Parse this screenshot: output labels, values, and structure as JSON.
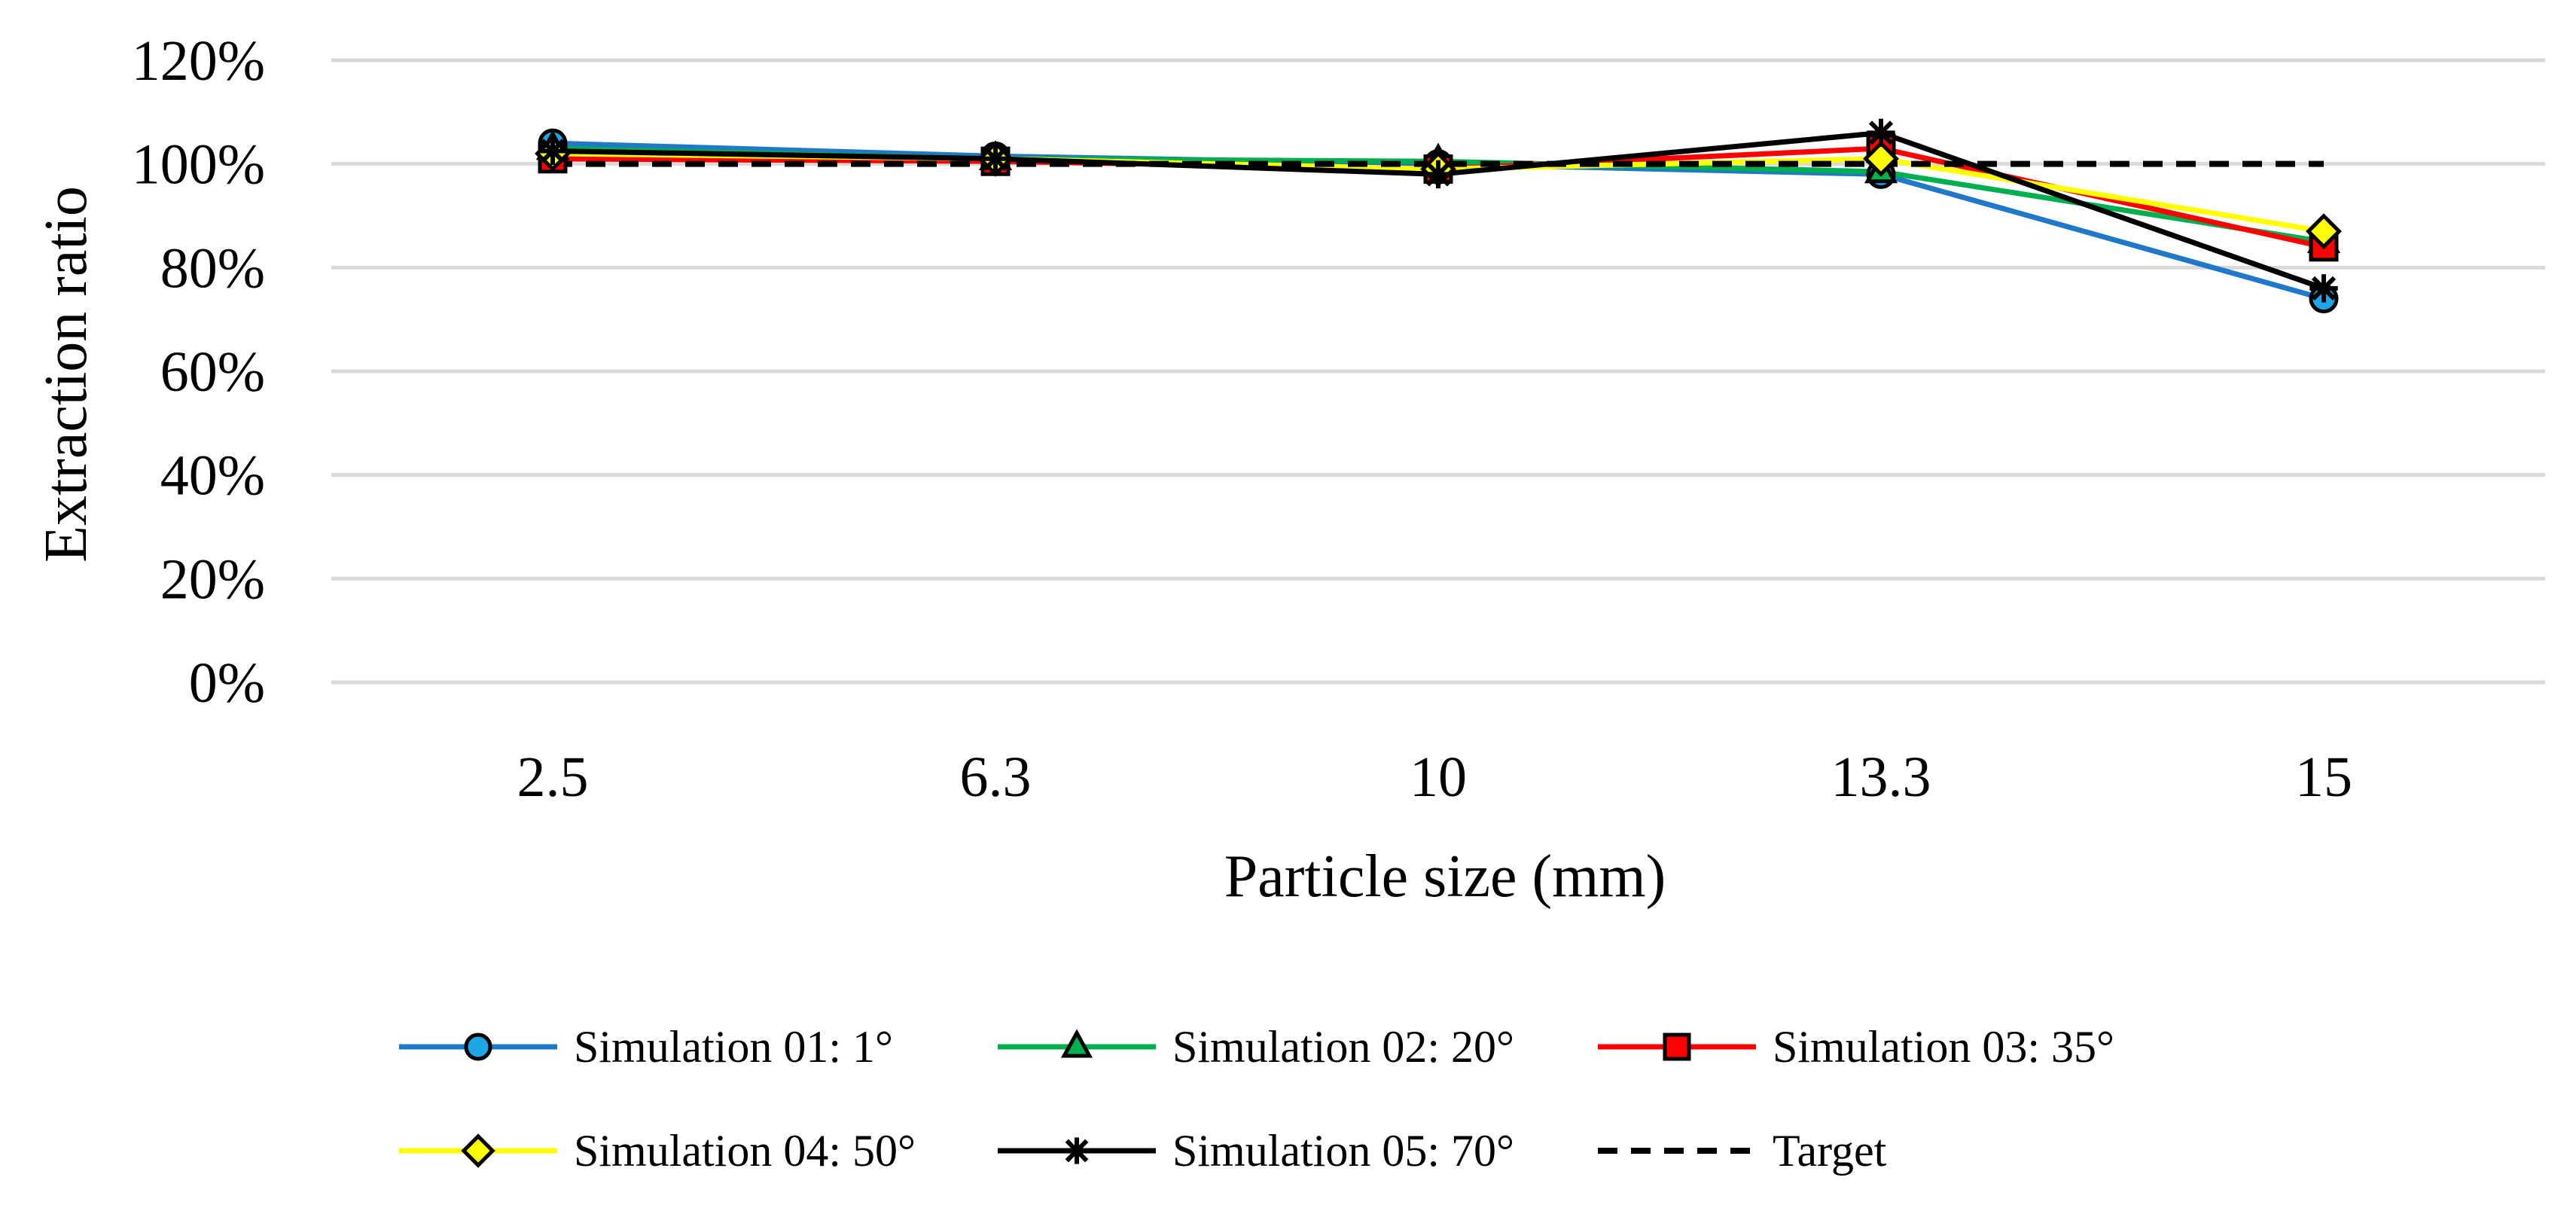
{
  "chart_data": {
    "type": "line",
    "title": "",
    "xlabel": "Particle size (mm)",
    "ylabel": "Extraction ratio",
    "categories": [
      "2.5",
      "6.3",
      "10",
      "13.3",
      "15"
    ],
    "ylim": [
      0,
      120
    ],
    "yticks": [
      0,
      20,
      40,
      60,
      80,
      100,
      120
    ],
    "ytick_labels": [
      "0%",
      "20%",
      "40%",
      "60%",
      "80%",
      "100%",
      "120%"
    ],
    "grid": "horizontal",
    "legend_position": "bottom",
    "series": [
      {
        "name": "Simulation 01: 1°",
        "color": "#1f78c8",
        "marker": "circle",
        "marker_fill": "#1ea6e6",
        "dash": "solid",
        "values": [
          104,
          101.5,
          100,
          98,
          74
        ]
      },
      {
        "name": "Simulation 02: 20°",
        "color": "#00b050",
        "marker": "triangle",
        "marker_fill": "#00b050",
        "dash": "solid",
        "values": [
          103,
          101,
          100.5,
          98.5,
          85
        ]
      },
      {
        "name": "Simulation 03: 35°",
        "color": "#ff0000",
        "marker": "square",
        "marker_fill": "#ff0000",
        "dash": "solid",
        "values": [
          101,
          100.5,
          99,
          103,
          84
        ]
      },
      {
        "name": "Simulation 04: 50°",
        "color": "#ffff00",
        "marker": "diamond",
        "marker_fill": "#ffff00",
        "dash": "solid",
        "values": [
          102,
          101,
          99,
          101,
          87
        ]
      },
      {
        "name": "Simulation 05: 70°",
        "color": "#000000",
        "marker": "star",
        "marker_fill": "#000000",
        "dash": "solid",
        "values": [
          102.5,
          101,
          98,
          106,
          76
        ]
      },
      {
        "name": "Target",
        "color": "#000000",
        "marker": "none",
        "marker_fill": "#000000",
        "dash": "dashed",
        "values": [
          100,
          100,
          100,
          100,
          100
        ]
      }
    ]
  }
}
